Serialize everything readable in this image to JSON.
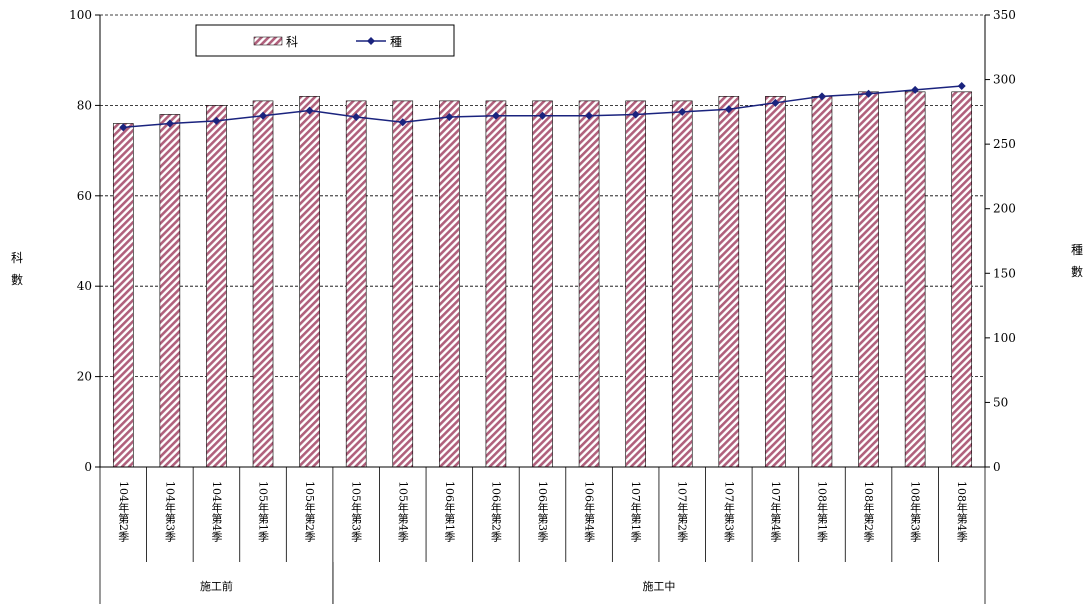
{
  "chart_data": {
    "type": "bar",
    "categories": [
      "104年第2季",
      "104年第3季",
      "104年第4季",
      "105年第1季",
      "105年第2季",
      "105年第3季",
      "105年第4季",
      "106年第1季",
      "106年第2季",
      "106年第3季",
      "106年第4季",
      "107年第1季",
      "107年第2季",
      "107年第3季",
      "107年第4季",
      "108年第1季",
      "108年第2季",
      "108年第3季",
      "108年第4季"
    ],
    "series": [
      {
        "name": "科",
        "type": "bar",
        "axis": "left",
        "color": "#b0607c",
        "values": [
          76,
          78,
          80,
          81,
          82,
          81,
          81,
          81,
          81,
          81,
          81,
          81,
          81,
          82,
          82,
          82,
          83,
          83,
          83
        ]
      },
      {
        "name": "種",
        "type": "line",
        "axis": "right",
        "color": "#1a237e",
        "values": [
          263,
          266,
          268,
          272,
          276,
          271,
          267,
          271,
          272,
          272,
          272,
          273,
          275,
          277,
          282,
          287,
          289,
          292,
          295
        ]
      }
    ],
    "groups": [
      {
        "label": "施工前",
        "from": 0,
        "to": 4
      },
      {
        "label": "施工中",
        "from": 5,
        "to": 18
      }
    ],
    "ylabel_left": "科數",
    "ylabel_right": "種數",
    "ylim_left": [
      0,
      100
    ],
    "ylim_right": [
      0,
      350
    ],
    "yticks_left": [
      "0",
      "20",
      "40",
      "60",
      "80",
      "100"
    ],
    "yticks_right": [
      "0",
      "50",
      "100",
      "150",
      "200",
      "250",
      "300",
      "350"
    ],
    "grid": "horizontal dashed at major left ticks",
    "legend_position": "top-left"
  }
}
